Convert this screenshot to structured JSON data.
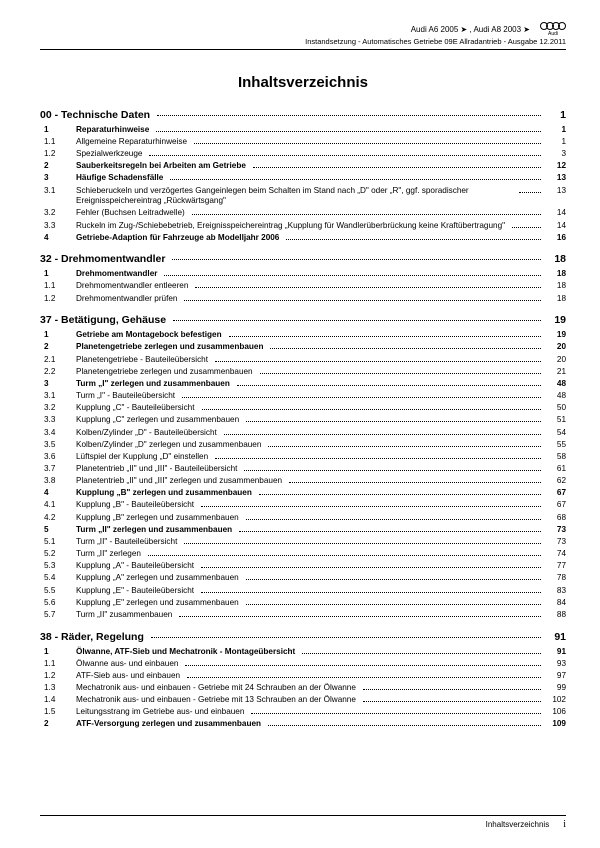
{
  "header": {
    "models": "Audi A6 2005 ➤ , Audi A8 2003 ➤",
    "subtitle": "Instandsetzung - Automatisches Getriebe 09E Allradantrieb - Ausgabe 12.2011",
    "logo_text": "Audi"
  },
  "title": "Inhaltsverzeichnis",
  "sections": [
    {
      "code": "00",
      "title": "Technische Daten",
      "page": "1",
      "items": [
        {
          "n": "1",
          "t": "Reparaturhinweise",
          "p": "1",
          "b": true
        },
        {
          "n": "1.1",
          "t": "Allgemeine Reparaturhinweise",
          "p": "1"
        },
        {
          "n": "1.2",
          "t": "Spezialwerkzeuge",
          "p": "3"
        },
        {
          "n": "2",
          "t": "Sauberkeitsregeln bei Arbeiten am Getriebe",
          "p": "12",
          "b": true
        },
        {
          "n": "3",
          "t": "Häufige Schadensfälle",
          "p": "13",
          "b": true
        },
        {
          "n": "3.1",
          "t": "Schieberuckeln und verzögertes Gangeinlegen beim Schalten im Stand nach „D\" oder „R\", ggf. sporadischer Ereignisspeichereintrag „Rückwärtsgang\"",
          "p": "13"
        },
        {
          "n": "3.2",
          "t": "Fehler (Buchsen Leitradwelle)",
          "p": "14"
        },
        {
          "n": "3.3",
          "t": "Ruckeln im Zug-/Schiebebetrieb, Ereignisspeichereintrag „Kupplung für Wandlerüberbrückung keine Kraftübertragung\"",
          "p": "14"
        },
        {
          "n": "4",
          "t": "Getriebe-Adaption für Fahrzeuge ab Modelljahr 2006",
          "p": "16",
          "b": true
        }
      ]
    },
    {
      "code": "32",
      "title": "Drehmomentwandler",
      "page": "18",
      "items": [
        {
          "n": "1",
          "t": "Drehmomentwandler",
          "p": "18",
          "b": true
        },
        {
          "n": "1.1",
          "t": "Drehmomentwandler entleeren",
          "p": "18"
        },
        {
          "n": "1.2",
          "t": "Drehmomentwandler prüfen",
          "p": "18"
        }
      ]
    },
    {
      "code": "37",
      "title": "Betätigung, Gehäuse",
      "page": "19",
      "items": [
        {
          "n": "1",
          "t": "Getriebe am Montagebock befestigen",
          "p": "19",
          "b": true
        },
        {
          "n": "2",
          "t": "Planetengetriebe zerlegen und zusammenbauen",
          "p": "20",
          "b": true
        },
        {
          "n": "2.1",
          "t": "Planetengetriebe - Bauteileübersicht",
          "p": "20"
        },
        {
          "n": "2.2",
          "t": "Planetengetriebe zerlegen und zusammenbauen",
          "p": "21"
        },
        {
          "n": "3",
          "t": "Turm „I\" zerlegen und zusammenbauen",
          "p": "48",
          "b": true
        },
        {
          "n": "3.1",
          "t": "Turm „I\" - Bauteileübersicht",
          "p": "48"
        },
        {
          "n": "3.2",
          "t": "Kupplung „C\" - Bauteileübersicht",
          "p": "50"
        },
        {
          "n": "3.3",
          "t": "Kupplung „C\" zerlegen und zusammenbauen",
          "p": "51"
        },
        {
          "n": "3.4",
          "t": "Kolben/Zylinder „D\" - Bauteileübersicht",
          "p": "54"
        },
        {
          "n": "3.5",
          "t": "Kolben/Zylinder „D\" zerlegen und zusammenbauen",
          "p": "55"
        },
        {
          "n": "3.6",
          "t": "Lüftspiel der Kupplung „D\" einstellen",
          "p": "58"
        },
        {
          "n": "3.7",
          "t": "Planetentrieb „II\" und „III\" - Bauteileübersicht",
          "p": "61"
        },
        {
          "n": "3.8",
          "t": "Planetentrieb „II\" und „III\" zerlegen und zusammenbauen",
          "p": "62"
        },
        {
          "n": "4",
          "t": "Kupplung „B\" zerlegen und zusammenbauen",
          "p": "67",
          "b": true
        },
        {
          "n": "4.1",
          "t": "Kupplung „B\" - Bauteileübersicht",
          "p": "67"
        },
        {
          "n": "4.2",
          "t": "Kupplung „B\" zerlegen und zusammenbauen",
          "p": "68"
        },
        {
          "n": "5",
          "t": "Turm „II\" zerlegen und zusammenbauen",
          "p": "73",
          "b": true
        },
        {
          "n": "5.1",
          "t": "Turm „II\" - Bauteileübersicht",
          "p": "73"
        },
        {
          "n": "5.2",
          "t": "Turm „II\" zerlegen",
          "p": "74"
        },
        {
          "n": "5.3",
          "t": "Kupplung „A\" - Bauteileübersicht",
          "p": "77"
        },
        {
          "n": "5.4",
          "t": "Kupplung „A\" zerlegen und zusammenbauen",
          "p": "78"
        },
        {
          "n": "5.5",
          "t": "Kupplung „E\" - Bauteileübersicht",
          "p": "83"
        },
        {
          "n": "5.6",
          "t": "Kupplung „E\" zerlegen und zusammenbauen",
          "p": "84"
        },
        {
          "n": "5.7",
          "t": "Turm „II\" zusammenbauen",
          "p": "88"
        }
      ]
    },
    {
      "code": "38",
      "title": "Räder, Regelung",
      "page": "91",
      "items": [
        {
          "n": "1",
          "t": "Ölwanne, ATF-Sieb und Mechatronik - Montageübersicht",
          "p": "91",
          "b": true
        },
        {
          "n": "1.1",
          "t": "Ölwanne aus- und einbauen",
          "p": "93"
        },
        {
          "n": "1.2",
          "t": "ATF-Sieb aus- und einbauen",
          "p": "97"
        },
        {
          "n": "1.3",
          "t": "Mechatronik aus- und einbauen - Getriebe mit 24 Schrauben an der Ölwanne",
          "p": "99"
        },
        {
          "n": "1.4",
          "t": "Mechatronik aus- und einbauen - Getriebe mit 13 Schrauben an der Ölwanne",
          "p": "102"
        },
        {
          "n": "1.5",
          "t": "Leitungsstrang im Getriebe aus- und einbauen",
          "p": "106"
        },
        {
          "n": "2",
          "t": "ATF-Versorgung zerlegen und zusammenbauen",
          "p": "109",
          "b": true
        }
      ]
    }
  ],
  "footer": {
    "label": "Inhaltsverzeichnis",
    "page": "i"
  }
}
